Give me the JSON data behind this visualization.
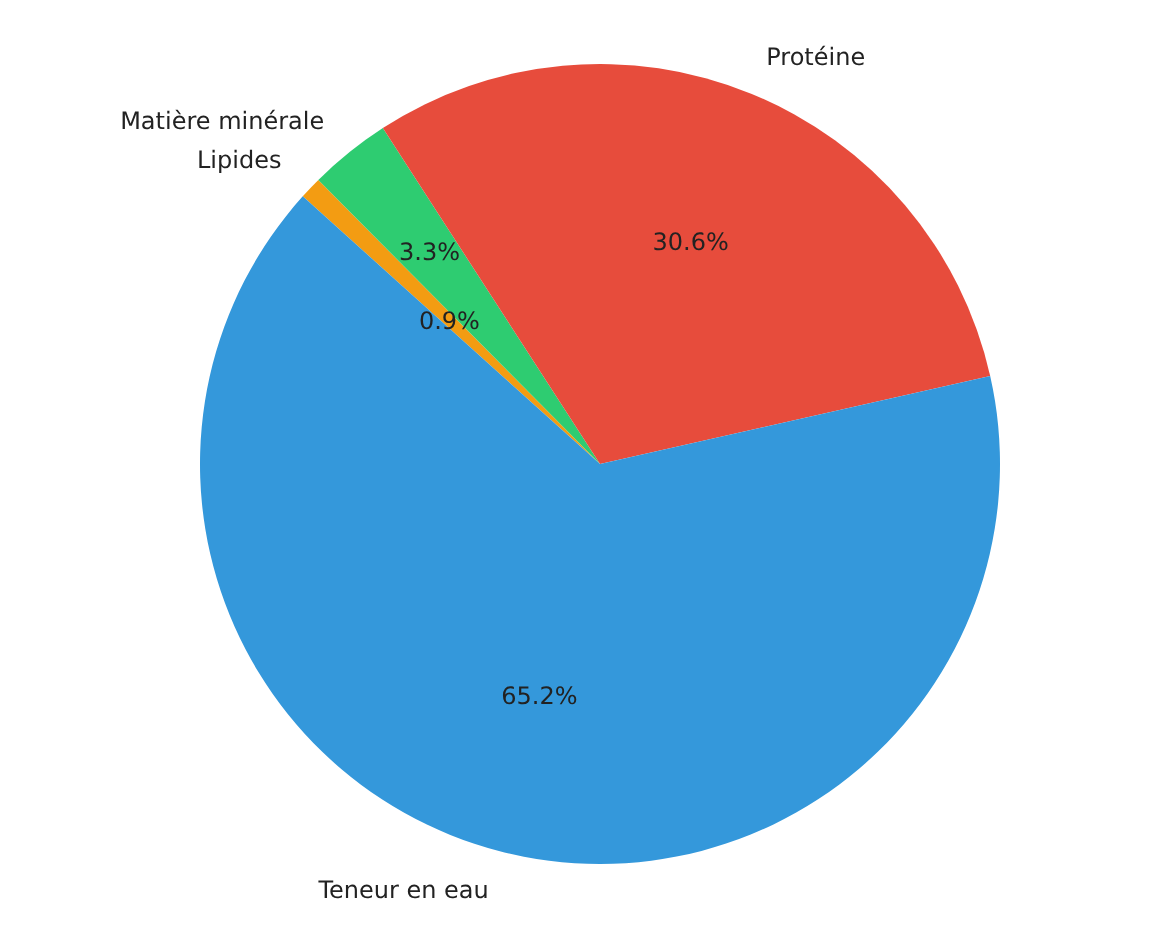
{
  "chart_data": {
    "type": "pie",
    "categories": [
      "Lipides",
      "Matière minérale",
      "Protéine",
      "Teneur en eau"
    ],
    "values": [
      0.9,
      3.3,
      30.6,
      65.2
    ],
    "colors": [
      "#f39c12",
      "#2ecc71",
      "#e74c3c",
      "#3498db"
    ],
    "value_labels": [
      "0.9%",
      "3.3%",
      "30.6%",
      "65.2%"
    ]
  }
}
